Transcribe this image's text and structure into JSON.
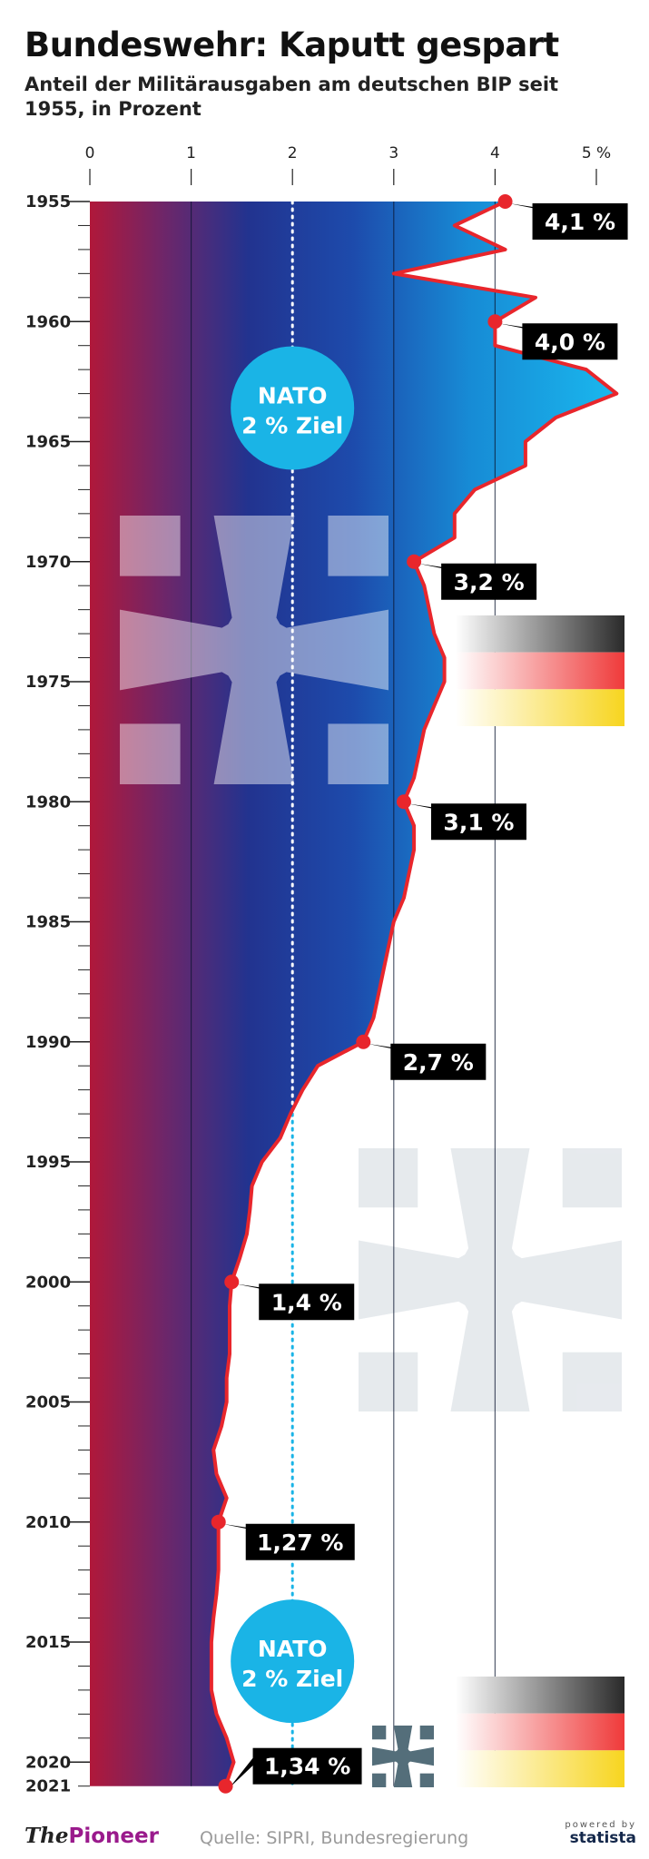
{
  "title": "Bundeswehr: Kaputt gespart",
  "subtitle": "Anteil der Militärausgaben am deutschen BIP seit 1955, in Prozent",
  "chart_data": {
    "type": "area",
    "orientation": "vertical",
    "title": "Bundeswehr: Kaputt gespart",
    "subtitle": "Anteil der Militärausgaben am deutschen BIP seit 1955, in Prozent",
    "x_ticks": [
      "0",
      "1",
      "2",
      "3",
      "4",
      "5 %"
    ],
    "xlim": [
      0,
      5
    ],
    "y_ticks": [
      "1955",
      "1960",
      "1965",
      "1970",
      "1975",
      "1980",
      "1985",
      "1990",
      "1995",
      "2000",
      "2005",
      "2010",
      "2015",
      "2020",
      "2021"
    ],
    "ylim": [
      1955,
      2021
    ],
    "grid": true,
    "series": [
      {
        "x": [
          1955,
          1956,
          1957,
          1958,
          1959,
          1960,
          1961,
          1962,
          1963,
          1964,
          1965,
          1966,
          1967,
          1968,
          1969,
          1970,
          1971,
          1972,
          1973,
          1974,
          1975,
          1976,
          1977,
          1978,
          1979,
          1980,
          1981,
          1982,
          1983,
          1984,
          1985,
          1986,
          1987,
          1988,
          1989,
          1990,
          1991,
          1992,
          1993,
          1994,
          1995,
          1996,
          1997,
          1998,
          1999,
          2000,
          2001,
          2002,
          2003,
          2004,
          2005,
          2006,
          2007,
          2008,
          2009,
          2010,
          2011,
          2012,
          2013,
          2014,
          2015,
          2016,
          2017,
          2018,
          2019,
          2020,
          2021
        ],
        "values": [
          4.1,
          3.6,
          4.1,
          3.0,
          4.4,
          4.0,
          4.0,
          4.9,
          5.2,
          4.6,
          4.3,
          4.3,
          3.8,
          3.6,
          3.6,
          3.2,
          3.3,
          3.35,
          3.4,
          3.5,
          3.5,
          3.4,
          3.3,
          3.25,
          3.2,
          3.1,
          3.2,
          3.2,
          3.15,
          3.1,
          3.0,
          2.95,
          2.9,
          2.85,
          2.8,
          2.7,
          2.25,
          2.1,
          1.98,
          1.88,
          1.7,
          1.6,
          1.58,
          1.55,
          1.48,
          1.4,
          1.38,
          1.38,
          1.38,
          1.35,
          1.35,
          1.3,
          1.22,
          1.25,
          1.35,
          1.27,
          1.27,
          1.27,
          1.25,
          1.22,
          1.2,
          1.2,
          1.2,
          1.25,
          1.35,
          1.42,
          1.34
        ]
      }
    ],
    "highlight_labels": [
      {
        "year": 1955,
        "value": 4.1,
        "text": "4,1 %"
      },
      {
        "year": 1960,
        "value": 4.0,
        "text": "4,0 %"
      },
      {
        "year": 1970,
        "value": 3.2,
        "text": "3,2 %"
      },
      {
        "year": 1980,
        "value": 3.1,
        "text": "3,1 %"
      },
      {
        "year": 1990,
        "value": 2.7,
        "text": "2,7 %"
      },
      {
        "year": 2000,
        "value": 1.4,
        "text": "1,4 %"
      },
      {
        "year": 2010,
        "value": 1.27,
        "text": "1,27 %"
      },
      {
        "year": 2021,
        "value": 1.34,
        "text": "1,34 %"
      }
    ],
    "reference_line": {
      "value": 2,
      "annotations": [
        {
          "year": 1963.6,
          "lines": [
            "NATO",
            "2 % Ziel"
          ]
        },
        {
          "year": 2015.8,
          "lines": [
            "NATO",
            "2 % Ziel"
          ]
        }
      ]
    },
    "colors": {
      "line": "#e8262c",
      "label_bg": "#000000",
      "nato": "#1ab4e6",
      "area_left": "#b0183a",
      "area_mid": "#20358f",
      "area_right": "#1ab4ea"
    }
  },
  "footer": {
    "brand_prefix": "The",
    "brand_main": "Pioneer",
    "source": "Quelle: SIPRI, Bundesregierung",
    "powered": "powered by",
    "statista": "statista"
  }
}
